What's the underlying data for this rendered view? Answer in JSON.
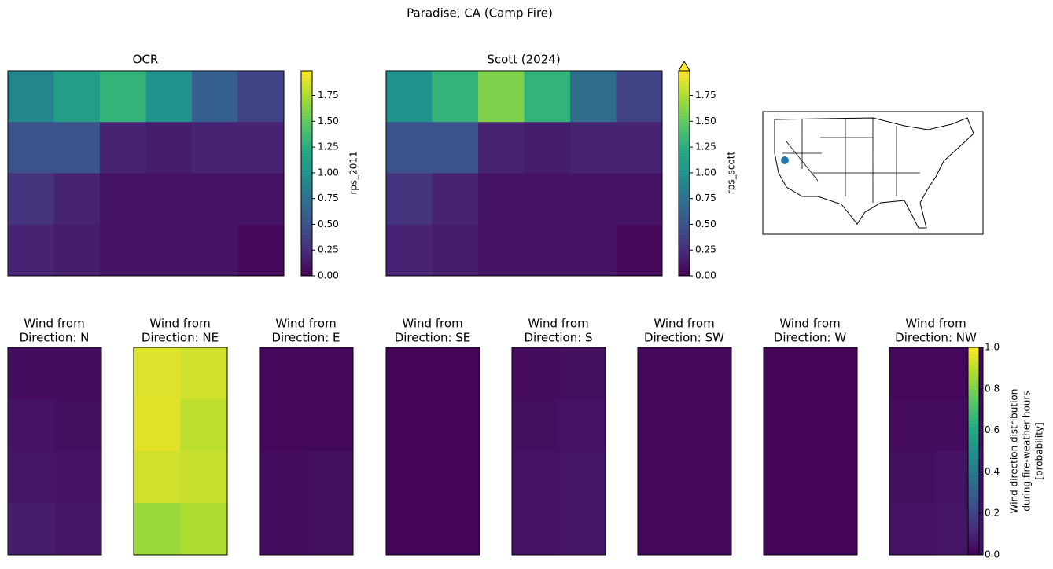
{
  "title": "Paradise, CA (Camp Fire)",
  "maps": [
    {
      "title": "OCR",
      "colorbar_label": "rps_2011",
      "clim": [
        0,
        1.99
      ],
      "extend": false,
      "ticks": [
        {
          "value": 0,
          "label": "0.00"
        },
        {
          "value": 0.25,
          "label": "0.25"
        },
        {
          "value": 0.5,
          "label": "0.50"
        },
        {
          "value": 0.75,
          "label": "0.75"
        },
        {
          "value": 1,
          "label": "1.00"
        },
        {
          "value": 1.25,
          "label": "1.25"
        },
        {
          "value": 1.5,
          "label": "1.50"
        },
        {
          "value": 1.75,
          "label": "1.75"
        }
      ],
      "values": [
        [
          0.9,
          1.1,
          1.3,
          1.0,
          0.6,
          0.4
        ],
        [
          0.5,
          0.5,
          0.2,
          0.15,
          0.2,
          0.2
        ],
        [
          0.3,
          0.2,
          0.1,
          0.1,
          0.1,
          0.1
        ],
        [
          0.2,
          0.15,
          0.1,
          0.1,
          0.1,
          0.05
        ]
      ]
    },
    {
      "title": "Scott (2024)",
      "colorbar_label": "rps_scott",
      "clim": [
        0,
        1.99
      ],
      "extend": true,
      "ticks": [
        {
          "value": 0,
          "label": "0.00"
        },
        {
          "value": 0.25,
          "label": "0.25"
        },
        {
          "value": 0.5,
          "label": "0.50"
        },
        {
          "value": 0.75,
          "label": "0.75"
        },
        {
          "value": 1,
          "label": "1.00"
        },
        {
          "value": 1.25,
          "label": "1.25"
        },
        {
          "value": 1.5,
          "label": "1.50"
        },
        {
          "value": 1.75,
          "label": "1.75"
        }
      ],
      "values": [
        [
          1.0,
          1.3,
          1.6,
          1.3,
          0.7,
          0.4
        ],
        [
          0.5,
          0.5,
          0.2,
          0.15,
          0.2,
          0.2
        ],
        [
          0.3,
          0.2,
          0.1,
          0.1,
          0.1,
          0.1
        ],
        [
          0.2,
          0.15,
          0.1,
          0.1,
          0.1,
          0.05
        ]
      ]
    }
  ],
  "wind": {
    "colorbar_label": [
      "Wind direction distribution",
      "during fire-weather hours",
      "[probability]"
    ],
    "clim": [
      0,
      1
    ],
    "ticks": [
      {
        "value": 0,
        "label": "0.0"
      },
      {
        "value": 0.2,
        "label": "0.2"
      },
      {
        "value": 0.4,
        "label": "0.4"
      },
      {
        "value": 0.6,
        "label": "0.6"
      },
      {
        "value": 0.8,
        "label": "0.8"
      },
      {
        "value": 1,
        "label": "1.0"
      }
    ],
    "panels": [
      {
        "title": [
          "Wind from",
          "Direction: N"
        ],
        "values": [
          [
            0.03,
            0.03
          ],
          [
            0.05,
            0.04
          ],
          [
            0.06,
            0.05
          ],
          [
            0.08,
            0.06
          ]
        ]
      },
      {
        "title": [
          "Wind from",
          "Direction: NE"
        ],
        "values": [
          [
            0.95,
            0.93
          ],
          [
            0.96,
            0.9
          ],
          [
            0.93,
            0.92
          ],
          [
            0.85,
            0.88
          ]
        ]
      },
      {
        "title": [
          "Wind from",
          "Direction: E"
        ],
        "values": [
          [
            0.02,
            0.02
          ],
          [
            0.02,
            0.02
          ],
          [
            0.03,
            0.04
          ],
          [
            0.03,
            0.04
          ]
        ]
      },
      {
        "title": [
          "Wind from",
          "Direction: SE"
        ],
        "values": [
          [
            0.01,
            0.01
          ],
          [
            0.01,
            0.01
          ],
          [
            0.01,
            0.01
          ],
          [
            0.01,
            0.01
          ]
        ]
      },
      {
        "title": [
          "Wind from",
          "Direction: S"
        ],
        "values": [
          [
            0.03,
            0.04
          ],
          [
            0.04,
            0.05
          ],
          [
            0.05,
            0.06
          ],
          [
            0.05,
            0.06
          ]
        ]
      },
      {
        "title": [
          "Wind from",
          "Direction: SW"
        ],
        "values": [
          [
            0.02,
            0.02
          ],
          [
            0.02,
            0.02
          ],
          [
            0.02,
            0.02
          ],
          [
            0.02,
            0.02
          ]
        ]
      },
      {
        "title": [
          "Wind from",
          "Direction: W"
        ],
        "values": [
          [
            0.01,
            0.01
          ],
          [
            0.01,
            0.01
          ],
          [
            0.01,
            0.01
          ],
          [
            0.01,
            0.01
          ]
        ]
      },
      {
        "title": [
          "Wind from",
          "Direction: NW"
        ],
        "values": [
          [
            0.02,
            0.02
          ],
          [
            0.03,
            0.03
          ],
          [
            0.04,
            0.05
          ],
          [
            0.05,
            0.06
          ]
        ]
      }
    ]
  }
}
